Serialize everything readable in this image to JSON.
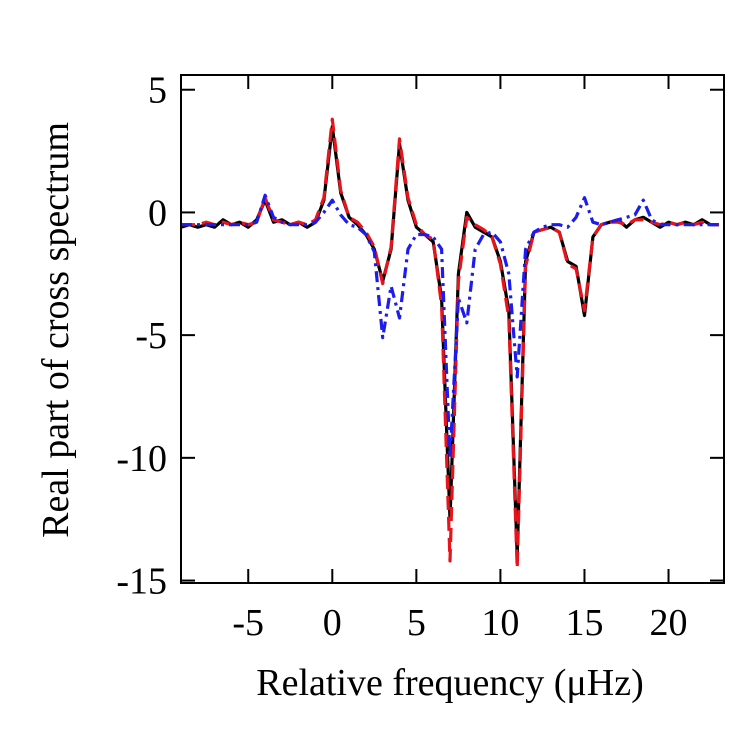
{
  "chart_data": {
    "type": "line",
    "xlabel": "Relative frequency (μHz)",
    "ylabel": "Real part of cross spectrum",
    "x": [
      -9,
      -8.5,
      -8,
      -7.5,
      -7,
      -6.5,
      -6,
      -5.5,
      -5,
      -4.5,
      -4,
      -3.5,
      -3,
      -2.5,
      -2,
      -1.5,
      -1,
      -0.5,
      0,
      0.5,
      1,
      1.5,
      2,
      2.5,
      3,
      3.5,
      4,
      4.5,
      5,
      5.5,
      6,
      6.5,
      7,
      7.5,
      8,
      8.5,
      9,
      9.5,
      10,
      10.5,
      11,
      11.5,
      12,
      12.5,
      13,
      13.5,
      14,
      14.5,
      15,
      15.5,
      16,
      16.5,
      17,
      17.5,
      18,
      18.5,
      19,
      19.5,
      20,
      20.5,
      21,
      21.5,
      22,
      22.5,
      23
    ],
    "series": [
      {
        "color": "#000000",
        "style": "solid",
        "values": [
          -0.6,
          -0.5,
          -0.6,
          -0.5,
          -0.6,
          -0.3,
          -0.5,
          -0.4,
          -0.6,
          -0.3,
          0.5,
          -0.4,
          -0.3,
          -0.5,
          -0.4,
          -0.6,
          -0.4,
          0.5,
          3.5,
          0.8,
          -0.2,
          -0.5,
          -0.9,
          -1.5,
          -2.8,
          -1.5,
          2.8,
          0.5,
          -0.6,
          -0.9,
          -1.2,
          -3.5,
          -12.5,
          -2.5,
          0.0,
          -0.6,
          -0.8,
          -1.0,
          -2.0,
          -4.0,
          -14.0,
          -2.0,
          -0.8,
          -0.7,
          -0.6,
          -0.8,
          -2.0,
          -2.2,
          -4.2,
          -1.0,
          -0.5,
          -0.4,
          -0.3,
          -0.6,
          -0.3,
          -0.2,
          -0.4,
          -0.6,
          -0.4,
          -0.5,
          -0.4,
          -0.5,
          -0.3,
          -0.5,
          -0.5
        ]
      },
      {
        "color": "#e8141c",
        "style": "dashed",
        "values": [
          -0.5,
          -0.5,
          -0.5,
          -0.4,
          -0.5,
          -0.4,
          -0.5,
          -0.4,
          -0.5,
          -0.4,
          0.6,
          -0.3,
          -0.4,
          -0.5,
          -0.4,
          -0.5,
          -0.3,
          0.6,
          3.8,
          0.9,
          -0.2,
          -0.4,
          -0.8,
          -1.4,
          -2.9,
          -1.4,
          3.0,
          0.6,
          -0.5,
          -0.9,
          -1.1,
          -3.8,
          -14.2,
          -2.8,
          -0.2,
          -0.5,
          -0.7,
          -1.0,
          -2.1,
          -4.3,
          -14.5,
          -2.2,
          -0.8,
          -0.7,
          -0.6,
          -0.8,
          -2.1,
          -2.3,
          -4.0,
          -1.0,
          -0.5,
          -0.4,
          -0.4,
          -0.5,
          -0.3,
          -0.3,
          -0.4,
          -0.5,
          -0.4,
          -0.5,
          -0.4,
          -0.5,
          -0.4,
          -0.5,
          -0.5
        ]
      },
      {
        "color": "#1c1cf0",
        "style": "dashdot",
        "values": [
          -0.5,
          -0.5,
          -0.5,
          -0.5,
          -0.5,
          -0.5,
          -0.5,
          -0.5,
          -0.5,
          -0.4,
          0.7,
          -0.2,
          -0.4,
          -0.5,
          -0.5,
          -0.5,
          -0.4,
          0.0,
          0.5,
          -0.1,
          -0.5,
          -0.6,
          -0.9,
          -1.6,
          -5.1,
          -3.0,
          -4.3,
          -1.5,
          -0.9,
          -0.9,
          -1.0,
          -1.5,
          -10.0,
          -3.5,
          -4.5,
          -1.5,
          -0.9,
          -0.8,
          -1.2,
          -2.5,
          -6.7,
          -1.5,
          -0.8,
          -0.6,
          -0.5,
          -0.5,
          -0.6,
          -0.2,
          0.6,
          -0.4,
          -0.5,
          -0.4,
          -0.3,
          -0.2,
          -0.1,
          0.5,
          -0.3,
          -0.5,
          -0.5,
          -0.5,
          -0.5,
          -0.5,
          -0.5,
          -0.5,
          -0.5
        ]
      }
    ],
    "xlim": [
      -9,
      23.3
    ],
    "xticks": [
      -5,
      0,
      5,
      10,
      15,
      20
    ],
    "ylim": [
      -15.1,
      5.6
    ],
    "yticks": [
      5,
      0,
      -5,
      -10,
      -15
    ],
    "grid": false
  }
}
